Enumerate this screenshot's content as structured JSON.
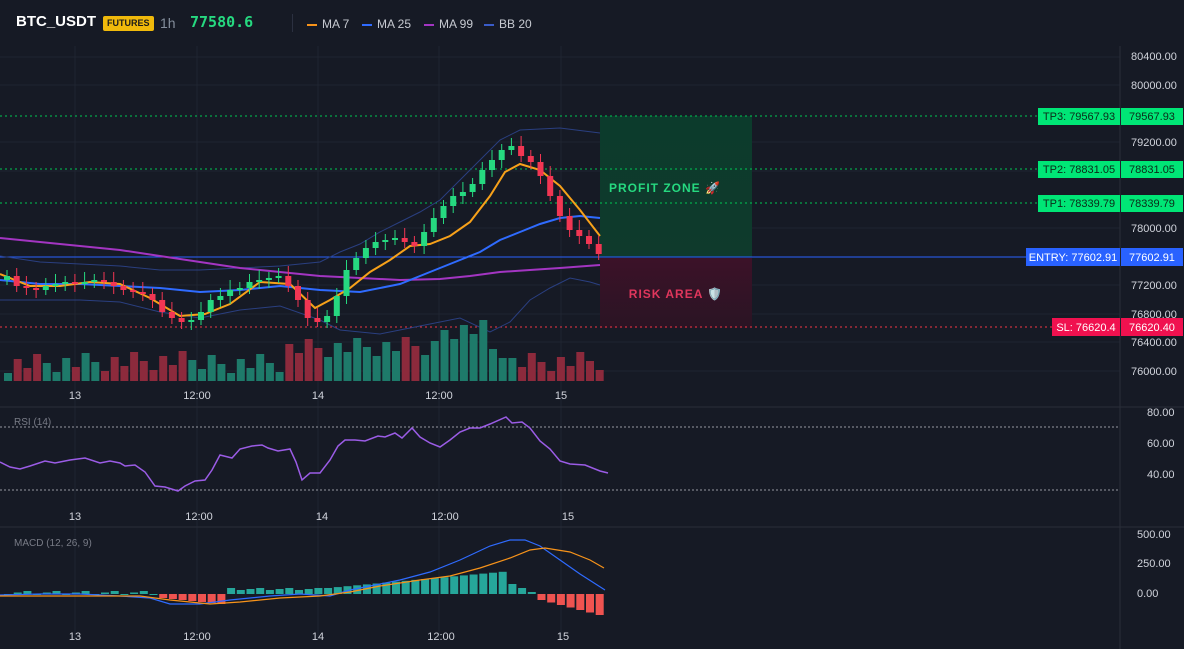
{
  "header": {
    "symbol": "BTC_USDT",
    "badge": "FUTURES",
    "timeframe": "1h",
    "last_price": "77580.6",
    "legend": [
      {
        "label": "MA 7",
        "color": "#f7931a"
      },
      {
        "label": "MA 25",
        "color": "#2f6bff"
      },
      {
        "label": "MA 99",
        "color": "#a335c2"
      },
      {
        "label": "BB 20",
        "color": "#2a3f80"
      }
    ]
  },
  "price_axis": [
    "80400.00",
    "80000.00",
    "79200.00",
    "78800.00",
    "78000.00",
    "77200.00",
    "76800.00",
    "76400.00",
    "76000.00"
  ],
  "time_axis": [
    "13",
    "12:00",
    "14",
    "12:00",
    "15"
  ],
  "levels": {
    "tp3": {
      "label": "TP3: 79567.93",
      "axis": "79567.93",
      "price": 79567.93,
      "color": "#00c853"
    },
    "tp2": {
      "label": "TP2: 78831.05",
      "axis": "78831.05",
      "price": 78831.05,
      "color": "#00c853"
    },
    "tp1": {
      "label": "TP1: 78339.79",
      "axis": "78339.79",
      "price": 78339.79,
      "color": "#00c853"
    },
    "entry": {
      "label": "ENTRY: 77602.91",
      "axis": "77602.91",
      "price": 77602.91,
      "color": "#2962ff"
    },
    "sl": {
      "label": "SL: 76620.4",
      "axis": "76620.40",
      "price": 76620.4,
      "color": "#f23645"
    }
  },
  "zones": {
    "profit": "PROFIT ZONE 🚀",
    "risk": "RISK AREA 🛡️"
  },
  "rsi": {
    "title": "RSI (14)",
    "axis": [
      "80.00",
      "60.00",
      "40.00"
    ],
    "overbought": 70,
    "oversold": 30
  },
  "macd": {
    "title": "MACD (12, 26, 9)",
    "axis": [
      "500.00",
      "250.00",
      "0.00"
    ]
  },
  "colors": {
    "up": "#26d980",
    "down": "#f23653",
    "vol_up": "#1e7a6a",
    "vol_down": "#8c2a3c"
  }
}
